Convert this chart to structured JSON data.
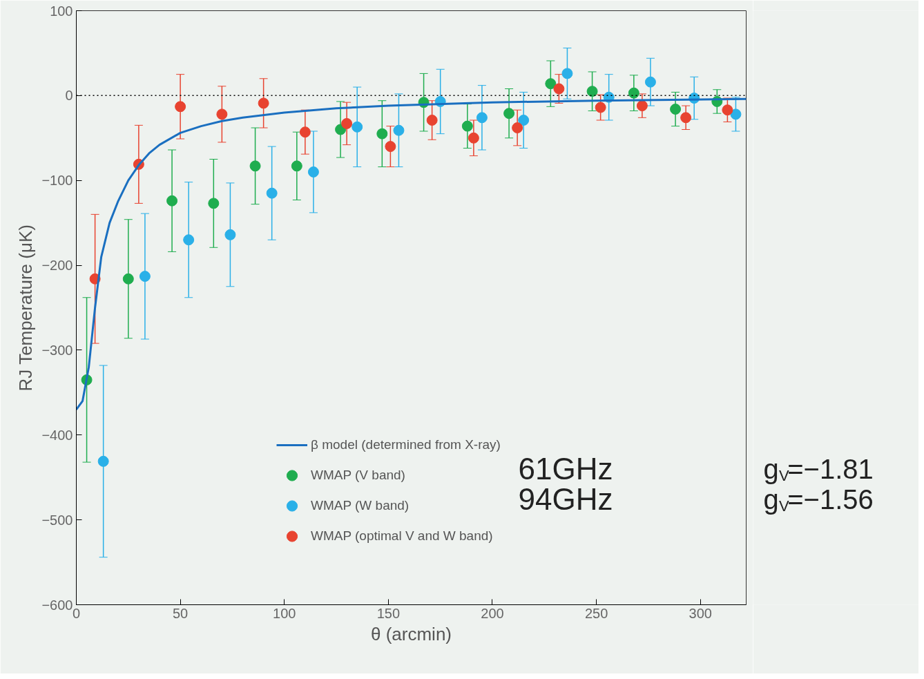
{
  "chart_data": {
    "type": "scatter",
    "xlabel": "θ (arcmin)",
    "ylabel": "RJ Temperature (μK)",
    "xlim": [
      0,
      322
    ],
    "ylim": [
      -600,
      100
    ],
    "xticks": [
      0,
      50,
      100,
      150,
      200,
      250,
      300
    ],
    "yticks": [
      -600,
      -500,
      -400,
      -300,
      -200,
      -100,
      0,
      100
    ],
    "legend": "bottom right",
    "marker": "circle",
    "ref_lines": [
      {
        "axis": "y",
        "value": 0,
        "label": null,
        "color": "#000000",
        "line_style": "dotted"
      }
    ],
    "annotations": [
      "61GHz",
      "94GHz",
      "g$_{V}$=−1.81",
      "g$_{V}$=−1.56"
    ],
    "series": [
      {
        "name": "β model (determined from X-ray)",
        "type": "line",
        "marker": "none",
        "color": "#1a6fc0",
        "x": [
          0,
          3,
          6,
          9,
          12,
          16,
          20,
          25,
          30,
          35,
          40,
          50,
          60,
          70,
          80,
          100,
          125,
          150,
          200,
          250,
          322
        ],
        "values": [
          -370,
          -360,
          -320,
          -250,
          -190,
          -150,
          -125,
          -100,
          -82,
          -68,
          -58,
          -44,
          -36,
          -30,
          -26,
          -20,
          -15,
          -12,
          -8,
          -6,
          -4
        ]
      },
      {
        "name": "WMAP (V band)",
        "color": "#1fad4f",
        "x": [
          5,
          25,
          46,
          66,
          86,
          106,
          127,
          147,
          167,
          188,
          208,
          228,
          248,
          268,
          288,
          308
        ],
        "values": [
          -335,
          -216,
          -124,
          -127,
          -83,
          -83,
          -40,
          -45,
          -8,
          -36,
          -21,
          14,
          5,
          3,
          -16,
          -7
        ],
        "errors": [
          97,
          70,
          60,
          52,
          45,
          40,
          33,
          39,
          34,
          26,
          29,
          27,
          23,
          21,
          20,
          14
        ]
      },
      {
        "name": "WMAP (W band)",
        "color": "#2ab0e8",
        "x": [
          13,
          33,
          54,
          74,
          94,
          114,
          135,
          155,
          175,
          195,
          215,
          236,
          256,
          276,
          297,
          317
        ],
        "values": [
          -431,
          -213,
          -170,
          -164,
          -115,
          -90,
          -37,
          -41,
          -7,
          -26,
          -29,
          26,
          -2,
          16,
          -3,
          -22
        ],
        "errors": [
          113,
          74,
          68,
          61,
          55,
          48,
          47,
          43,
          38,
          38,
          33,
          30,
          27,
          28,
          25,
          20
        ]
      },
      {
        "name": "WMAP (optimal V and W band)",
        "color": "#e84330",
        "x": [
          9,
          30,
          50,
          70,
          90,
          110,
          130,
          151,
          171,
          191,
          212,
          232,
          252,
          272,
          293,
          313
        ],
        "values": [
          -216,
          -81,
          -13,
          -22,
          -9,
          -43,
          -33,
          -60,
          -29,
          -50,
          -38,
          8,
          -14,
          -12,
          -26,
          -17
        ],
        "errors": [
          76,
          46,
          38,
          33,
          29,
          26,
          25,
          24,
          23,
          21,
          21,
          17,
          15,
          14,
          14,
          14
        ]
      }
    ]
  }
}
